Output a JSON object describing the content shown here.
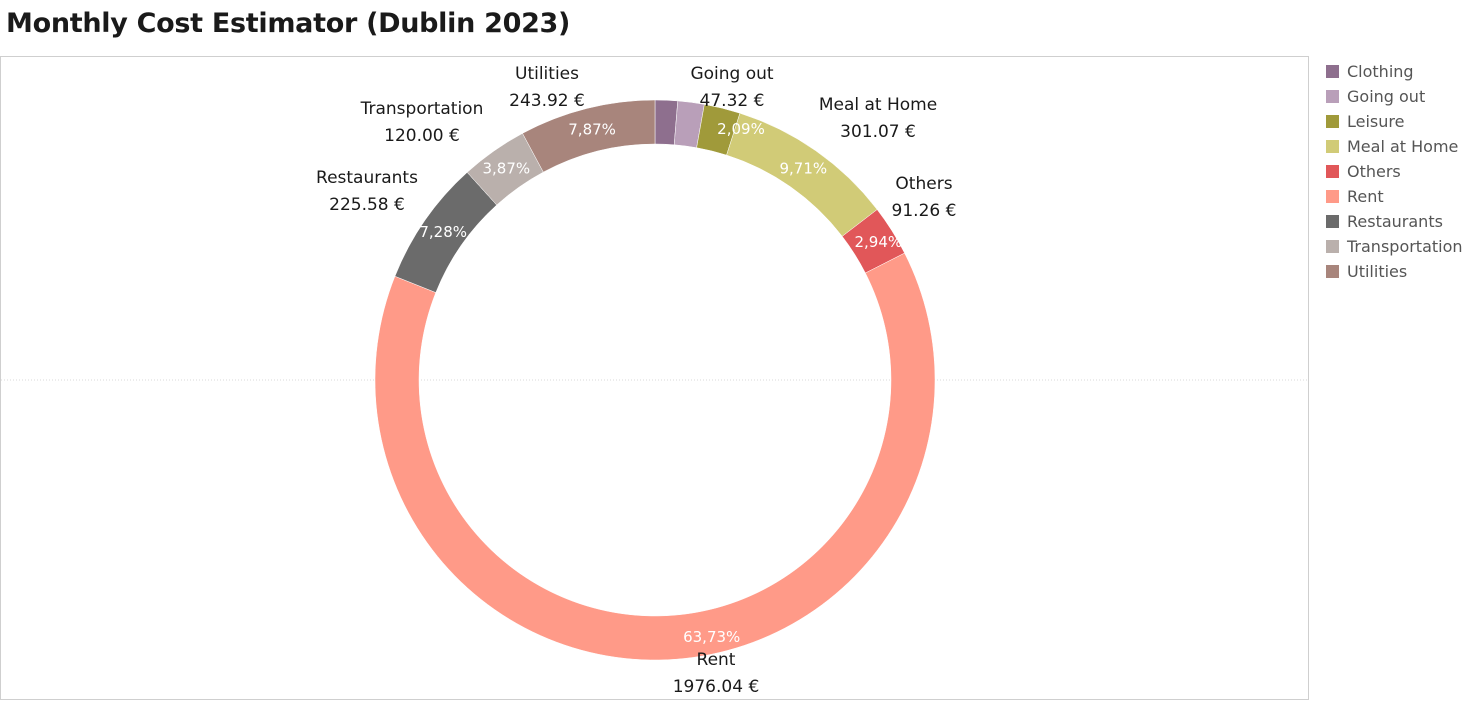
{
  "title": "Monthly Cost Estimator (Dublin 2023)",
  "legend": [
    {
      "name": "Clothing",
      "color": "#8e6f8e"
    },
    {
      "name": "Going out",
      "color": "#b99fb9"
    },
    {
      "name": "Leisure",
      "color": "#a09a3a"
    },
    {
      "name": "Meal at Home",
      "color": "#d1cb77"
    },
    {
      "name": "Others",
      "color": "#e15759"
    },
    {
      "name": "Rent",
      "color": "#ff9a88"
    },
    {
      "name": "Restaurants",
      "color": "#6b6b6b"
    },
    {
      "name": "Transportation",
      "color": "#bab0ac"
    },
    {
      "name": "Utilities",
      "color": "#a8857c"
    }
  ],
  "chart_data": {
    "type": "pie",
    "title": "Monthly Cost Estimator (Dublin 2023)",
    "donut": true,
    "legend_position": "right",
    "slices": [
      {
        "category": "Clothing",
        "percent": 1.3,
        "percent_label": "",
        "value_label": "",
        "color": "#8e6f8e"
      },
      {
        "category": "Going out",
        "percent": 1.53,
        "percent_label": "",
        "value_label": "47.32 €",
        "color": "#b99fb9"
      },
      {
        "category": "Leisure",
        "percent": 2.09,
        "percent_label": "2,09%",
        "value_label": "",
        "color": "#a09a3a"
      },
      {
        "category": "Meal at Home",
        "percent": 9.71,
        "percent_label": "9,71%",
        "value_label": "301.07 €",
        "color": "#d1cb77"
      },
      {
        "category": "Others",
        "percent": 2.94,
        "percent_label": "2,94%",
        "value_label": "91.26 €",
        "color": "#e15759"
      },
      {
        "category": "Rent",
        "percent": 63.73,
        "percent_label": "63,73%",
        "value_label": "1976.04 €",
        "color": "#ff9a88"
      },
      {
        "category": "Restaurants",
        "percent": 7.28,
        "percent_label": "7,28%",
        "value_label": "225.58 €",
        "color": "#6b6b6b"
      },
      {
        "category": "Transportation",
        "percent": 3.87,
        "percent_label": "3,87%",
        "value_label": "120.00 €",
        "color": "#bab0ac"
      },
      {
        "category": "Utilities",
        "percent": 7.87,
        "percent_label": "7,87%",
        "value_label": "243.92 €",
        "color": "#a8857c"
      }
    ]
  }
}
